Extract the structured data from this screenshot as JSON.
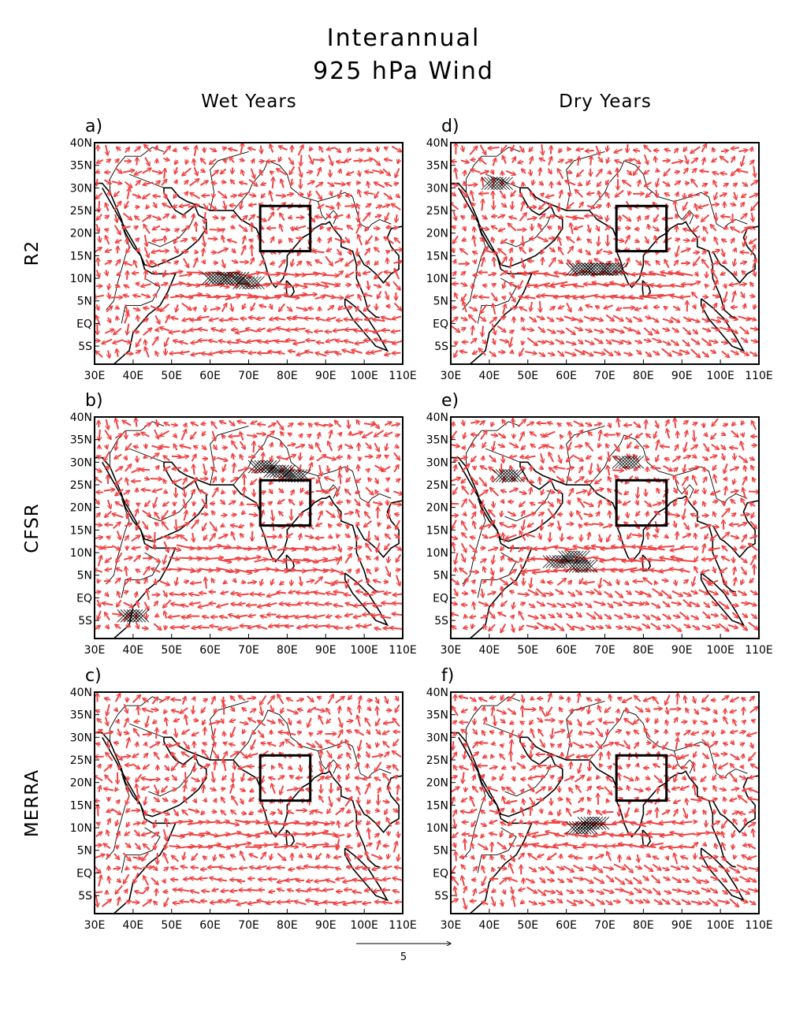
{
  "title_line1": "Interannual",
  "title_line2": "925 hPa Wind",
  "columns": [
    "Wet Years",
    "Dry Years"
  ],
  "rows": [
    "R2",
    "CFSR",
    "MERRA"
  ],
  "panels": [
    {
      "label": "a)",
      "col": 0,
      "row": 0,
      "seed": 11,
      "band": "westerly",
      "hatch": [
        [
          62,
          10
        ],
        [
          66,
          10
        ],
        [
          70,
          9
        ]
      ]
    },
    {
      "label": "b)",
      "col": 0,
      "row": 1,
      "seed": 23,
      "band": "westerly",
      "hatch": [
        [
          74,
          29
        ],
        [
          78,
          28
        ],
        [
          82,
          27
        ],
        [
          40,
          -4
        ]
      ]
    },
    {
      "label": "c)",
      "col": 0,
      "row": 2,
      "seed": 37,
      "band": "westerly",
      "hatch": []
    },
    {
      "label": "d)",
      "col": 1,
      "row": 0,
      "seed": 41,
      "band": "easterly",
      "hatch": [
        [
          64,
          12
        ],
        [
          68,
          12
        ],
        [
          72,
          12
        ],
        [
          42,
          31
        ]
      ]
    },
    {
      "label": "e)",
      "col": 1,
      "row": 1,
      "seed": 53,
      "band": "easterly",
      "hatch": [
        [
          58,
          8
        ],
        [
          62,
          9
        ],
        [
          64,
          7
        ],
        [
          76,
          30
        ],
        [
          45,
          27
        ]
      ]
    },
    {
      "label": "f)",
      "col": 1,
      "row": 2,
      "seed": 67,
      "band": "easterly",
      "hatch": [
        [
          64,
          10
        ],
        [
          67,
          11
        ]
      ]
    }
  ],
  "x_ticks": [
    "30E",
    "40E",
    "50E",
    "60E",
    "70E",
    "80E",
    "90E",
    "100E",
    "110E"
  ],
  "y_ticks": [
    "40N",
    "35N",
    "30N",
    "25N",
    "20N",
    "15N",
    "10N",
    "5N",
    "EQ",
    "5S"
  ],
  "box_region": {
    "lon": [
      73,
      86
    ],
    "lat": [
      16,
      26
    ]
  },
  "reference_vector": {
    "label": "5",
    "magnitude": 5
  },
  "colors": {
    "vectors": "#ee4444",
    "coast": "#000000",
    "box": "#000000",
    "frame": "#000000"
  }
}
